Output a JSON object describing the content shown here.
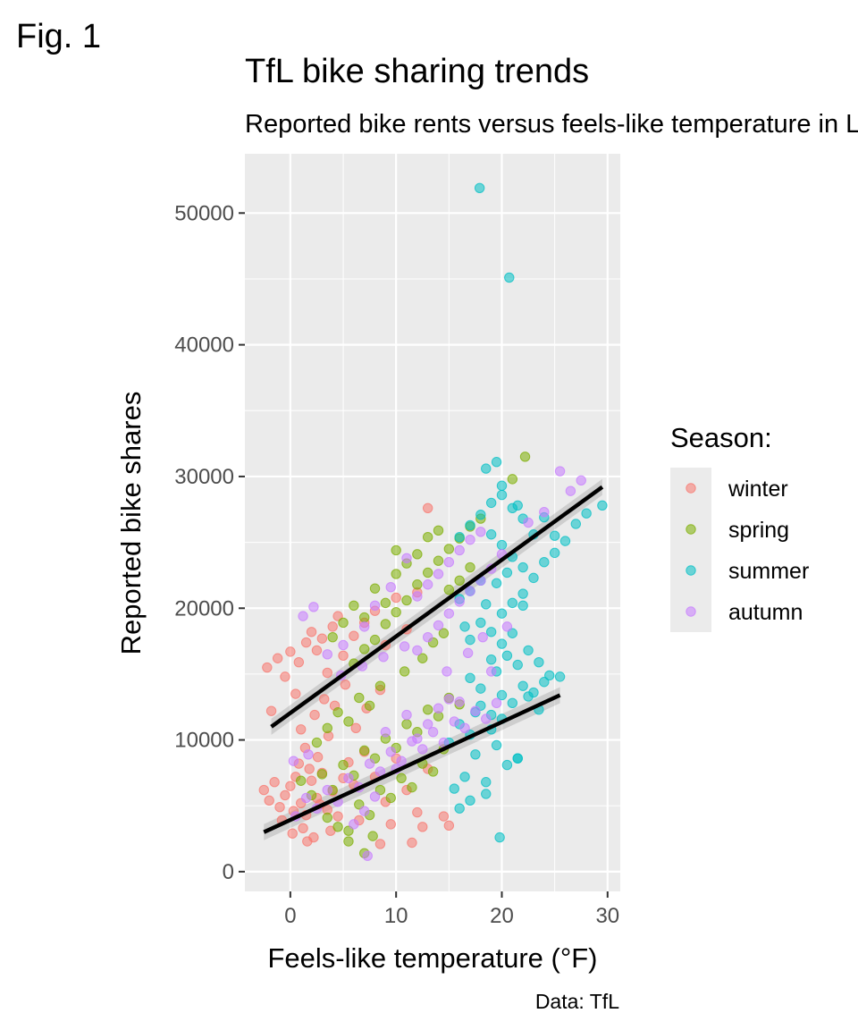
{
  "figure_label": "Fig. 1",
  "chart_data": {
    "type": "scatter",
    "title": "TfL bike sharing trends",
    "subtitle": "Reported bike rents versus feels-like temperature in London",
    "xlabel": "Feels-like temperature (°F)",
    "ylabel": "Reported bike shares",
    "caption": "Data: TfL",
    "xlim": [
      -4.3,
      31.2
    ],
    "ylim": [
      -1500,
      54500
    ],
    "x_ticks": [
      0,
      10,
      20,
      30
    ],
    "y_ticks": [
      0,
      10000,
      20000,
      30000,
      40000,
      50000
    ],
    "x_tick_labels": [
      "0",
      "10",
      "20",
      "30"
    ],
    "y_tick_labels": [
      "0",
      "10000",
      "20000",
      "30000",
      "40000",
      "50000"
    ],
    "grid": true,
    "legend": {
      "title": "Season:",
      "position": "right",
      "entries": [
        "winter",
        "spring",
        "summer",
        "autumn"
      ]
    },
    "series": [
      {
        "name": "winter",
        "color": "#F8766D",
        "points": [
          [
            -2.5,
            6200
          ],
          [
            -2.0,
            5400
          ],
          [
            -1.5,
            6800
          ],
          [
            -1.0,
            4900
          ],
          [
            -0.5,
            5800
          ],
          [
            0,
            6500
          ],
          [
            0.5,
            7200
          ],
          [
            1.0,
            5200
          ],
          [
            1.5,
            4300
          ],
          [
            2.0,
            6900
          ],
          [
            2.5,
            5600
          ],
          [
            3.0,
            7500
          ],
          [
            3.5,
            4700
          ],
          [
            4.0,
            6100
          ],
          [
            -0.8,
            3900
          ],
          [
            0.3,
            4600
          ],
          [
            1.2,
            3300
          ],
          [
            2.2,
            2600
          ],
          [
            0.8,
            8200
          ],
          [
            1.8,
            7800
          ],
          [
            2.8,
            5100
          ],
          [
            4.5,
            4200
          ],
          [
            5.0,
            7100
          ],
          [
            5.5,
            8300
          ],
          [
            6.0,
            6600
          ],
          [
            6.5,
            3900
          ],
          [
            7.0,
            9100
          ],
          [
            8.0,
            7200
          ],
          [
            9.0,
            5300
          ],
          [
            10.0,
            8600
          ],
          [
            11.0,
            6200
          ],
          [
            12.0,
            4500
          ],
          [
            13.0,
            7800
          ],
          [
            -2.2,
            15500
          ],
          [
            -1.2,
            16200
          ],
          [
            -0.5,
            14800
          ],
          [
            0,
            16700
          ],
          [
            0.8,
            15900
          ],
          [
            1.5,
            17400
          ],
          [
            2.0,
            18200
          ],
          [
            2.5,
            16800
          ],
          [
            3.0,
            17700
          ],
          [
            3.5,
            15100
          ],
          [
            4.0,
            18600
          ],
          [
            4.5,
            19400
          ],
          [
            5.0,
            16400
          ],
          [
            6.0,
            17900
          ],
          [
            7.0,
            18900
          ],
          [
            8.0,
            19800
          ],
          [
            9.0,
            17200
          ],
          [
            10.0,
            20800
          ],
          [
            11.0,
            18400
          ],
          [
            12.0,
            21200
          ],
          [
            13.0,
            27600
          ],
          [
            -1.8,
            12200
          ],
          [
            0.5,
            13500
          ],
          [
            1.0,
            10800
          ],
          [
            2.3,
            11900
          ],
          [
            3.2,
            13100
          ],
          [
            4.2,
            12600
          ],
          [
            5.2,
            14200
          ],
          [
            6.2,
            10900
          ],
          [
            7.2,
            12400
          ],
          [
            8.5,
            13800
          ],
          [
            1.4,
            9400
          ],
          [
            2.6,
            8700
          ],
          [
            3.6,
            10300
          ],
          [
            0.2,
            2900
          ],
          [
            1.6,
            2300
          ],
          [
            3.8,
            3100
          ],
          [
            8.5,
            2100
          ],
          [
            9.5,
            3600
          ],
          [
            11.5,
            2200
          ],
          [
            12.5,
            3400
          ],
          [
            14.5,
            4200
          ],
          [
            15.0,
            3500
          ]
        ]
      },
      {
        "name": "spring",
        "color": "#7CAE00",
        "points": [
          [
            1.0,
            6900
          ],
          [
            2.0,
            5800
          ],
          [
            3.0,
            7400
          ],
          [
            4.0,
            6200
          ],
          [
            5.0,
            8100
          ],
          [
            6.0,
            7300
          ],
          [
            7.0,
            9200
          ],
          [
            8.0,
            8600
          ],
          [
            9.0,
            10100
          ],
          [
            10.0,
            9400
          ],
          [
            11.0,
            11200
          ],
          [
            12.0,
            10600
          ],
          [
            13.0,
            12300
          ],
          [
            14.0,
            11800
          ],
          [
            15.0,
            13200
          ],
          [
            16.0,
            12700
          ],
          [
            3.5,
            4100
          ],
          [
            4.5,
            3400
          ],
          [
            5.5,
            2300
          ],
          [
            6.5,
            5100
          ],
          [
            7.5,
            4300
          ],
          [
            8.5,
            6200
          ],
          [
            9.5,
            5600
          ],
          [
            10.5,
            7100
          ],
          [
            11.5,
            6400
          ],
          [
            12.5,
            8200
          ],
          [
            13.5,
            7600
          ],
          [
            14.5,
            9300
          ],
          [
            2.5,
            9800
          ],
          [
            3.5,
            10900
          ],
          [
            4.5,
            12100
          ],
          [
            5.5,
            11400
          ],
          [
            6.5,
            13200
          ],
          [
            7.5,
            12600
          ],
          [
            8.5,
            14100
          ],
          [
            5.5,
            3100
          ],
          [
            7.0,
            1400
          ],
          [
            7.8,
            2700
          ],
          [
            6.0,
            15800
          ],
          [
            7.0,
            16900
          ],
          [
            8.0,
            17600
          ],
          [
            9.0,
            18800
          ],
          [
            10.0,
            19700
          ],
          [
            11.0,
            20600
          ],
          [
            12.0,
            21800
          ],
          [
            13.0,
            22700
          ],
          [
            14.0,
            23600
          ],
          [
            15.0,
            24500
          ],
          [
            16.0,
            25300
          ],
          [
            17.0,
            26200
          ],
          [
            10.0,
            22600
          ],
          [
            11.0,
            23400
          ],
          [
            12.0,
            24100
          ],
          [
            13.0,
            25400
          ],
          [
            14.0,
            25900
          ],
          [
            15.0,
            21400
          ],
          [
            16.0,
            22100
          ],
          [
            17.0,
            23100
          ],
          [
            4.0,
            17800
          ],
          [
            5.0,
            18900
          ],
          [
            6.0,
            20200
          ],
          [
            7.0,
            19300
          ],
          [
            8.0,
            21500
          ],
          [
            9.0,
            20400
          ],
          [
            10.0,
            24400
          ],
          [
            22.2,
            31500
          ],
          [
            21.0,
            29800
          ],
          [
            18.0,
            26800
          ],
          [
            12.5,
            16200
          ],
          [
            13.5,
            17400
          ],
          [
            14.5,
            18100
          ],
          [
            10.8,
            15200
          ]
        ]
      },
      {
        "name": "summer",
        "color": "#00BFC4",
        "points": [
          [
            15.0,
            9800
          ],
          [
            16.0,
            11200
          ],
          [
            17.0,
            10400
          ],
          [
            18.0,
            12600
          ],
          [
            19.0,
            11900
          ],
          [
            20.0,
            13400
          ],
          [
            21.0,
            12800
          ],
          [
            22.0,
            14100
          ],
          [
            23.0,
            13600
          ],
          [
            24.0,
            14400
          ],
          [
            25.5,
            14800
          ],
          [
            16.5,
            7200
          ],
          [
            17.5,
            8900
          ],
          [
            18.5,
            6800
          ],
          [
            19.5,
            9600
          ],
          [
            20.5,
            8100
          ],
          [
            21.5,
            8600
          ],
          [
            16.0,
            4800
          ],
          [
            17.0,
            5400
          ],
          [
            18.5,
            5900
          ],
          [
            15.5,
            6300
          ],
          [
            19.0,
            10800
          ],
          [
            20.0,
            11600
          ],
          [
            18.0,
            13900
          ],
          [
            17.5,
            12100
          ],
          [
            19.5,
            15200
          ],
          [
            20.5,
            16400
          ],
          [
            21.5,
            15700
          ],
          [
            22.5,
            16800
          ],
          [
            23.5,
            15900
          ],
          [
            24.5,
            14900
          ],
          [
            17.0,
            17600
          ],
          [
            18.0,
            18900
          ],
          [
            19.0,
            18200
          ],
          [
            20.0,
            19600
          ],
          [
            21.0,
            20400
          ],
          [
            22.0,
            21100
          ],
          [
            23.0,
            22300
          ],
          [
            24.0,
            23500
          ],
          [
            25.0,
            24200
          ],
          [
            26.0,
            25100
          ],
          [
            27.0,
            26400
          ],
          [
            28.0,
            27200
          ],
          [
            29.5,
            27800
          ],
          [
            16.0,
            25400
          ],
          [
            17.0,
            26300
          ],
          [
            18.0,
            27100
          ],
          [
            19.0,
            28000
          ],
          [
            20.0,
            28600
          ],
          [
            21.0,
            27600
          ],
          [
            22.0,
            26800
          ],
          [
            23.0,
            25600
          ],
          [
            24.0,
            26900
          ],
          [
            25.0,
            25500
          ],
          [
            18.5,
            30600
          ],
          [
            19.5,
            31100
          ],
          [
            20.0,
            29300
          ],
          [
            21.5,
            27800
          ],
          [
            19.0,
            25600
          ],
          [
            20.0,
            24800
          ],
          [
            21.0,
            23900
          ],
          [
            22.0,
            23100
          ],
          [
            18.0,
            22100
          ],
          [
            17.0,
            21300
          ],
          [
            17.9,
            51900
          ],
          [
            20.7,
            45100
          ],
          [
            18.5,
            20300
          ],
          [
            19.5,
            21900
          ],
          [
            20.5,
            22700
          ],
          [
            22.0,
            20200
          ],
          [
            16.5,
            18600
          ],
          [
            19.0,
            16100
          ],
          [
            20.0,
            17300
          ],
          [
            21.0,
            18100
          ],
          [
            21.5,
            8600
          ],
          [
            19.8,
            2600
          ],
          [
            23.5,
            12300
          ],
          [
            22.5,
            13300
          ],
          [
            16.0,
            20700
          ],
          [
            17.0,
            14700
          ]
        ]
      },
      {
        "name": "autumn",
        "color": "#C77CFF",
        "points": [
          [
            0.5,
            4200
          ],
          [
            1.5,
            5600
          ],
          [
            2.5,
            4800
          ],
          [
            3.5,
            6200
          ],
          [
            4.5,
            5300
          ],
          [
            5.5,
            7100
          ],
          [
            6.5,
            6400
          ],
          [
            7.5,
            8200
          ],
          [
            8.5,
            7600
          ],
          [
            9.5,
            9100
          ],
          [
            10.5,
            8400
          ],
          [
            11.5,
            9900
          ],
          [
            12.5,
            9300
          ],
          [
            13.5,
            10600
          ],
          [
            14.5,
            9800
          ],
          [
            15.5,
            11400
          ],
          [
            16.5,
            10900
          ],
          [
            17.5,
            12200
          ],
          [
            18.5,
            11600
          ],
          [
            19.5,
            12800
          ],
          [
            11.0,
            11900
          ],
          [
            12.0,
            10100
          ],
          [
            13.0,
            11200
          ],
          [
            14.0,
            12400
          ],
          [
            15.0,
            13100
          ],
          [
            16.0,
            12900
          ],
          [
            9.0,
            10600
          ],
          [
            10.0,
            7800
          ],
          [
            8.0,
            5700
          ],
          [
            7.0,
            4600
          ],
          [
            6.0,
            3600
          ],
          [
            7.3,
            1200
          ],
          [
            12.0,
            16800
          ],
          [
            13.0,
            17800
          ],
          [
            14.0,
            18700
          ],
          [
            15.0,
            19600
          ],
          [
            16.0,
            20500
          ],
          [
            17.0,
            21300
          ],
          [
            18.0,
            22100
          ],
          [
            19.0,
            23000
          ],
          [
            20.0,
            24100
          ],
          [
            12.0,
            20900
          ],
          [
            13.0,
            21800
          ],
          [
            14.0,
            22600
          ],
          [
            15.0,
            23500
          ],
          [
            16.0,
            24400
          ],
          [
            17.0,
            25200
          ],
          [
            18.0,
            25800
          ],
          [
            25.5,
            30400
          ],
          [
            26.5,
            28900
          ],
          [
            27.5,
            29700
          ],
          [
            24.0,
            27300
          ],
          [
            22.5,
            26500
          ],
          [
            11.0,
            23800
          ],
          [
            9.5,
            21600
          ],
          [
            8.0,
            20200
          ],
          [
            7.0,
            18600
          ],
          [
            5.0,
            17200
          ],
          [
            1.2,
            19400
          ],
          [
            3.5,
            16500
          ],
          [
            4.8,
            14900
          ],
          [
            6.8,
            15600
          ],
          [
            8.8,
            16300
          ],
          [
            10.8,
            17100
          ],
          [
            14.8,
            15200
          ],
          [
            16.8,
            16600
          ],
          [
            18.2,
            17800
          ],
          [
            2.2,
            20100
          ],
          [
            0.3,
            8400
          ],
          [
            1.7,
            8900
          ],
          [
            19.0,
            15200
          ],
          [
            20.5,
            18600
          ]
        ]
      }
    ],
    "trend_lines": [
      {
        "x": [
          -1.8,
          29.5
        ],
        "y": [
          11000,
          29200
        ]
      },
      {
        "x": [
          -2.5,
          25.5
        ],
        "y": [
          3000,
          13400
        ]
      }
    ]
  }
}
